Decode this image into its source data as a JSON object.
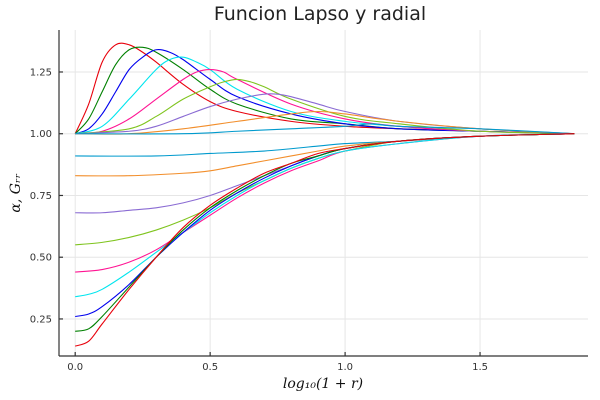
{
  "chart_data": {
    "type": "line",
    "title": "Funcion Lapso y radial",
    "xlabel": "log₁₀(1 + r)",
    "ylabel": "α, Gᵣᵣ",
    "xlim": [
      -0.06,
      1.9
    ],
    "ylim": [
      0.1,
      1.42
    ],
    "xticks": [
      0.0,
      0.5,
      1.0,
      1.5
    ],
    "xtick_labels": [
      "0.0",
      "0.5",
      "1.0",
      "1.5"
    ],
    "yticks": [
      0.25,
      0.5,
      0.75,
      1.0,
      1.25
    ],
    "ytick_labels": [
      "0.25",
      "0.50",
      "0.75",
      "1.00",
      "1.25"
    ],
    "grid": true,
    "legend": "none",
    "series": [
      {
        "color": "#e8000b",
        "x": [
          0,
          0.05,
          0.1,
          0.15,
          0.2,
          0.25,
          0.3,
          0.4,
          0.5,
          0.6,
          0.8,
          1.0,
          1.2,
          1.5,
          1.85
        ],
        "values": [
          1.0,
          1.12,
          1.29,
          1.36,
          1.36,
          1.33,
          1.29,
          1.2,
          1.13,
          1.09,
          1.05,
          1.03,
          1.02,
          1.01,
          1.0
        ]
      },
      {
        "color": "#008000",
        "x": [
          0,
          0.05,
          0.1,
          0.15,
          0.2,
          0.25,
          0.3,
          0.4,
          0.5,
          0.6,
          0.8,
          1.0,
          1.2,
          1.5,
          1.85
        ],
        "values": [
          1.0,
          1.06,
          1.17,
          1.28,
          1.34,
          1.35,
          1.33,
          1.26,
          1.18,
          1.12,
          1.06,
          1.04,
          1.02,
          1.01,
          1.0
        ]
      },
      {
        "color": "#0000ee",
        "x": [
          0,
          0.05,
          0.1,
          0.15,
          0.2,
          0.25,
          0.3,
          0.35,
          0.4,
          0.5,
          0.6,
          0.8,
          1.0,
          1.2,
          1.5,
          1.85
        ],
        "values": [
          1.0,
          1.02,
          1.08,
          1.17,
          1.26,
          1.31,
          1.34,
          1.33,
          1.3,
          1.22,
          1.15,
          1.08,
          1.04,
          1.02,
          1.01,
          1.0
        ]
      },
      {
        "color": "#00e5ee",
        "x": [
          0,
          0.1,
          0.2,
          0.3,
          0.35,
          0.4,
          0.45,
          0.5,
          0.6,
          0.8,
          1.0,
          1.2,
          1.5,
          1.85
        ],
        "values": [
          1.0,
          1.03,
          1.14,
          1.26,
          1.3,
          1.31,
          1.29,
          1.26,
          1.18,
          1.09,
          1.05,
          1.03,
          1.01,
          1.0
        ]
      },
      {
        "color": "#ff1493",
        "x": [
          0,
          0.1,
          0.2,
          0.3,
          0.4,
          0.45,
          0.5,
          0.55,
          0.6,
          0.8,
          1.0,
          1.2,
          1.5,
          1.85
        ],
        "values": [
          1.0,
          1.01,
          1.06,
          1.14,
          1.22,
          1.25,
          1.26,
          1.25,
          1.22,
          1.12,
          1.06,
          1.03,
          1.01,
          1.0
        ]
      },
      {
        "color": "#7fc41e",
        "x": [
          0,
          0.2,
          0.3,
          0.4,
          0.5,
          0.55,
          0.6,
          0.65,
          0.7,
          0.8,
          1.0,
          1.2,
          1.5,
          1.85
        ],
        "values": [
          1.0,
          1.02,
          1.07,
          1.14,
          1.19,
          1.21,
          1.22,
          1.21,
          1.19,
          1.14,
          1.07,
          1.04,
          1.01,
          1.0
        ]
      },
      {
        "color": "#8a6bd3",
        "x": [
          0,
          0.2,
          0.3,
          0.4,
          0.5,
          0.6,
          0.7,
          0.75,
          0.8,
          0.9,
          1.0,
          1.2,
          1.5,
          1.85
        ],
        "values": [
          1.0,
          1.01,
          1.03,
          1.07,
          1.11,
          1.14,
          1.16,
          1.16,
          1.15,
          1.12,
          1.09,
          1.05,
          1.02,
          1.0
        ]
      },
      {
        "color": "#f28e2b",
        "x": [
          0,
          0.2,
          0.4,
          0.6,
          0.8,
          0.9,
          1.0,
          1.2,
          1.5,
          1.85
        ],
        "values": [
          1.0,
          1.0,
          1.02,
          1.05,
          1.08,
          1.09,
          1.08,
          1.05,
          1.02,
          1.0
        ]
      },
      {
        "color": "#009acd",
        "x": [
          0,
          0.4,
          0.6,
          0.8,
          1.0,
          1.1,
          1.2,
          1.5,
          1.85
        ],
        "values": [
          1.0,
          1.0,
          1.01,
          1.02,
          1.03,
          1.04,
          1.03,
          1.02,
          1.0
        ]
      },
      {
        "color": "#009acd",
        "x": [
          0,
          0.3,
          0.5,
          0.7,
          0.9,
          1.0,
          1.2,
          1.5,
          1.85
        ],
        "values": [
          0.91,
          0.91,
          0.92,
          0.93,
          0.95,
          0.96,
          0.97,
          0.99,
          1.0
        ]
      },
      {
        "color": "#f28e2b",
        "x": [
          0,
          0.2,
          0.4,
          0.5,
          0.6,
          0.7,
          0.8,
          0.9,
          1.0,
          1.2,
          1.5,
          1.85
        ],
        "values": [
          0.83,
          0.83,
          0.84,
          0.85,
          0.87,
          0.89,
          0.91,
          0.93,
          0.95,
          0.97,
          0.99,
          1.0
        ]
      },
      {
        "color": "#8a6bd3",
        "x": [
          0,
          0.1,
          0.2,
          0.3,
          0.4,
          0.5,
          0.6,
          0.7,
          0.8,
          0.9,
          1.0,
          1.2,
          1.5,
          1.85
        ],
        "values": [
          0.68,
          0.68,
          0.69,
          0.7,
          0.72,
          0.75,
          0.79,
          0.83,
          0.87,
          0.91,
          0.94,
          0.97,
          0.99,
          1.0
        ]
      },
      {
        "color": "#7fc41e",
        "x": [
          0,
          0.1,
          0.2,
          0.3,
          0.4,
          0.5,
          0.6,
          0.7,
          0.8,
          0.9,
          1.0,
          1.2,
          1.5,
          1.85
        ],
        "values": [
          0.55,
          0.56,
          0.58,
          0.61,
          0.65,
          0.7,
          0.76,
          0.81,
          0.86,
          0.9,
          0.93,
          0.97,
          0.99,
          1.0
        ]
      },
      {
        "color": "#ff1493",
        "x": [
          0,
          0.1,
          0.2,
          0.3,
          0.4,
          0.5,
          0.6,
          0.7,
          0.8,
          0.9,
          1.0,
          1.2,
          1.5,
          1.85
        ],
        "values": [
          0.44,
          0.45,
          0.48,
          0.53,
          0.6,
          0.67,
          0.74,
          0.8,
          0.85,
          0.89,
          0.93,
          0.96,
          0.99,
          1.0
        ]
      },
      {
        "color": "#00e5ee",
        "x": [
          0,
          0.05,
          0.1,
          0.2,
          0.3,
          0.4,
          0.5,
          0.6,
          0.7,
          0.8,
          0.9,
          1.0,
          1.2,
          1.5,
          1.85
        ],
        "values": [
          0.34,
          0.35,
          0.37,
          0.44,
          0.52,
          0.6,
          0.68,
          0.75,
          0.81,
          0.86,
          0.9,
          0.93,
          0.96,
          0.99,
          1.0
        ]
      },
      {
        "color": "#0000ee",
        "x": [
          0,
          0.05,
          0.1,
          0.2,
          0.3,
          0.4,
          0.5,
          0.6,
          0.7,
          0.8,
          0.9,
          1.0,
          1.2,
          1.5,
          1.85
        ],
        "values": [
          0.26,
          0.27,
          0.3,
          0.39,
          0.5,
          0.6,
          0.69,
          0.76,
          0.82,
          0.87,
          0.91,
          0.94,
          0.97,
          0.99,
          1.0
        ]
      },
      {
        "color": "#008000",
        "x": [
          0,
          0.05,
          0.1,
          0.2,
          0.3,
          0.4,
          0.5,
          0.6,
          0.7,
          0.8,
          0.9,
          1.0,
          1.2,
          1.5,
          1.85
        ],
        "values": [
          0.2,
          0.21,
          0.26,
          0.38,
          0.5,
          0.61,
          0.7,
          0.77,
          0.83,
          0.88,
          0.91,
          0.94,
          0.97,
          0.99,
          1.0
        ]
      },
      {
        "color": "#e8000b",
        "x": [
          0,
          0.05,
          0.1,
          0.2,
          0.3,
          0.4,
          0.5,
          0.6,
          0.7,
          0.8,
          0.9,
          1.0,
          1.2,
          1.5,
          1.85
        ],
        "values": [
          0.14,
          0.16,
          0.23,
          0.37,
          0.5,
          0.62,
          0.71,
          0.78,
          0.84,
          0.88,
          0.92,
          0.94,
          0.97,
          0.99,
          1.0
        ]
      }
    ]
  }
}
